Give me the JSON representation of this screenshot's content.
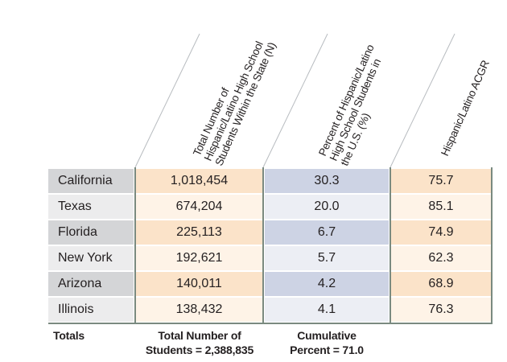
{
  "headers": {
    "total_n": [
      "Total Number of",
      "Hispanic/Latino High School",
      "Students Within the State (N)"
    ],
    "percent": [
      "Percent of Hispanic/Latino",
      "High School Students in",
      "the U.S. (%)"
    ],
    "acgr": [
      "Hispanic/Latino ACGR"
    ]
  },
  "rows": [
    {
      "state": "California",
      "n": "1,018,454",
      "pct": "30.3",
      "acgr": "75.7"
    },
    {
      "state": "Texas",
      "n": "674,204",
      "pct": "20.0",
      "acgr": "85.1"
    },
    {
      "state": "Florida",
      "n": "225,113",
      "pct": "6.7",
      "acgr": "74.9"
    },
    {
      "state": "New York",
      "n": "192,621",
      "pct": "5.7",
      "acgr": "62.3"
    },
    {
      "state": "Arizona",
      "n": "140,011",
      "pct": "4.2",
      "acgr": "68.9"
    },
    {
      "state": "Illinois",
      "n": "138,432",
      "pct": "4.1",
      "acgr": "76.3"
    }
  ],
  "totals": {
    "label": "Totals",
    "total_n_line1": "Total Number of",
    "total_n_line2": "Students = 2,388,835",
    "cumulative_line1": "Cumulative",
    "cumulative_line2": "Percent = 71.0"
  },
  "colors": {
    "state_dark": "#d4d5d7",
    "state_light": "#ececed",
    "orange_dark": "#fbe3c9",
    "orange_light": "#fef3e7",
    "blue_dark": "#cdd3e4",
    "blue_light": "#eceef4",
    "rule": "#7a8a80"
  }
}
